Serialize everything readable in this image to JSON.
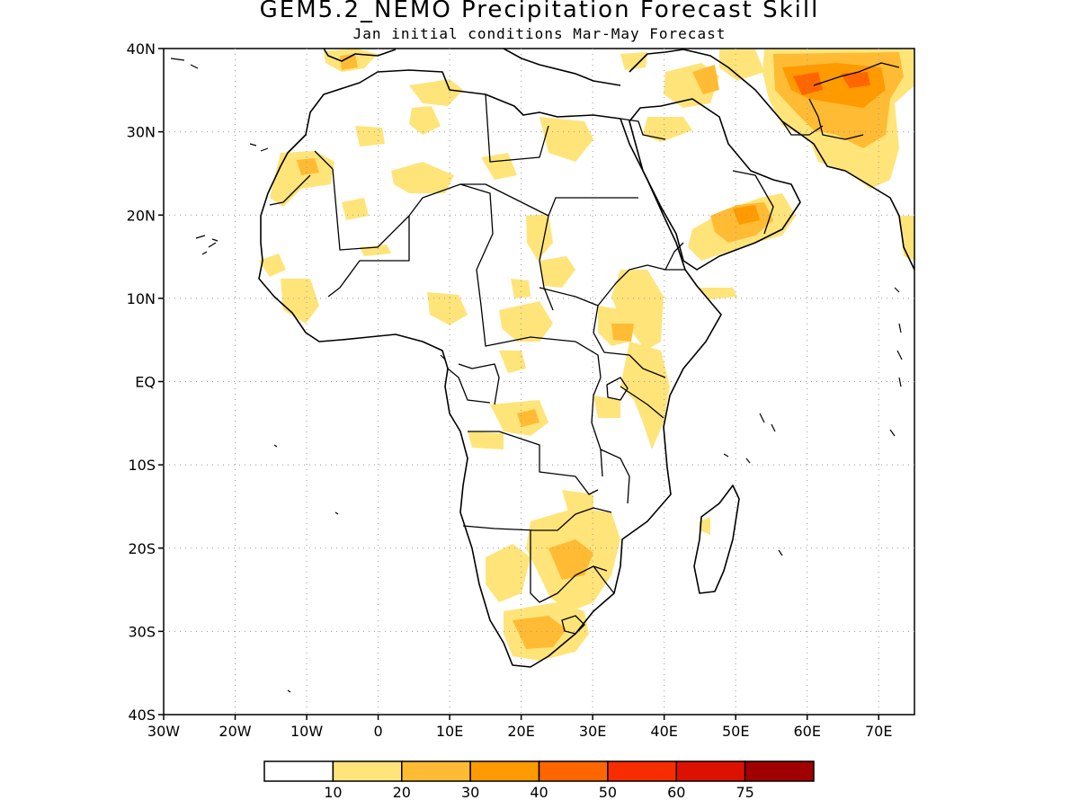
{
  "title": "GEM5.2_NEMO Precipitation Forecast Skill",
  "subtitle": "Jan initial conditions  Mar-May Forecast",
  "map": {
    "lat_range": [
      -40,
      40
    ],
    "lon_range": [
      -30,
      75
    ],
    "lat_labels": [
      "40N",
      "30N",
      "20N",
      "10N",
      "EQ",
      "10S",
      "20S",
      "30S",
      "40S"
    ],
    "lon_labels": [
      "30W",
      "20W",
      "10W",
      "0",
      "10E",
      "20E",
      "30E",
      "40E",
      "50E",
      "60E",
      "70E"
    ],
    "grid": "dotted"
  },
  "colorbar": {
    "colors": [
      "#ffffff",
      "#ffe47a",
      "#ffbb33",
      "#ff9a00",
      "#ff6600",
      "#f72d00",
      "#dd1100",
      "#a00000"
    ],
    "labels": [
      "10",
      "20",
      "30",
      "40",
      "50",
      "60",
      "75"
    ]
  }
}
